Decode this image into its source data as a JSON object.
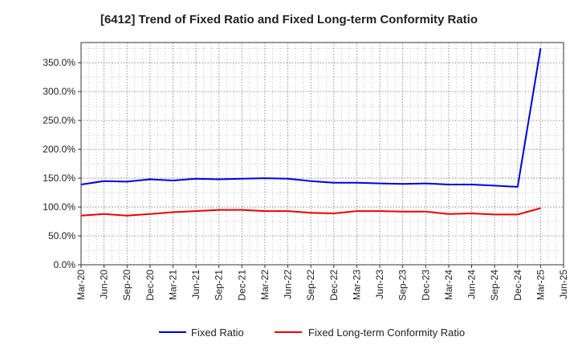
{
  "chart_data": {
    "type": "line",
    "title": "[6412]  Trend of Fixed Ratio and Fixed Long-term Conformity Ratio",
    "xlabel": "",
    "ylabel": "",
    "x": [
      "Mar-20",
      "Jun-20",
      "Sep-20",
      "Dec-20",
      "Mar-21",
      "Jun-21",
      "Sep-21",
      "Dec-21",
      "Mar-22",
      "Jun-22",
      "Sep-22",
      "Dec-22",
      "Mar-23",
      "Jun-23",
      "Sep-23",
      "Dec-23",
      "Mar-24",
      "Jun-24",
      "Sep-24",
      "Dec-24",
      "Mar-25",
      "Jun-25"
    ],
    "x_ticks": [
      "Mar-20",
      "Jun-20",
      "Sep-20",
      "Dec-20",
      "Mar-21",
      "Jun-21",
      "Sep-21",
      "Dec-21",
      "Mar-22",
      "Jun-22",
      "Sep-22",
      "Dec-22",
      "Mar-23",
      "Jun-23",
      "Sep-23",
      "Dec-23",
      "Mar-24",
      "Jun-24",
      "Sep-24",
      "Dec-24",
      "Mar-25",
      "Jun-25"
    ],
    "y_ticks": [
      "0.0%",
      "50.0%",
      "100.0%",
      "150.0%",
      "200.0%",
      "250.0%",
      "300.0%",
      "350.0%"
    ],
    "ylim": [
      0,
      385
    ],
    "grid": true,
    "legend_position": "bottom",
    "series": [
      {
        "name": "Fixed Ratio",
        "color": "#0000dd",
        "values": [
          139,
          145,
          144,
          148,
          146,
          149,
          148,
          149,
          150,
          149,
          145,
          142,
          142,
          141,
          140,
          141,
          139,
          139,
          137,
          135,
          375,
          null
        ]
      },
      {
        "name": "Fixed Long-term Conformity Ratio",
        "color": "#ee0000",
        "values": [
          85,
          88,
          85,
          88,
          91,
          93,
          95,
          95,
          93,
          93,
          90,
          89,
          93,
          93,
          92,
          92,
          88,
          89,
          87,
          87,
          98,
          null
        ]
      }
    ]
  }
}
